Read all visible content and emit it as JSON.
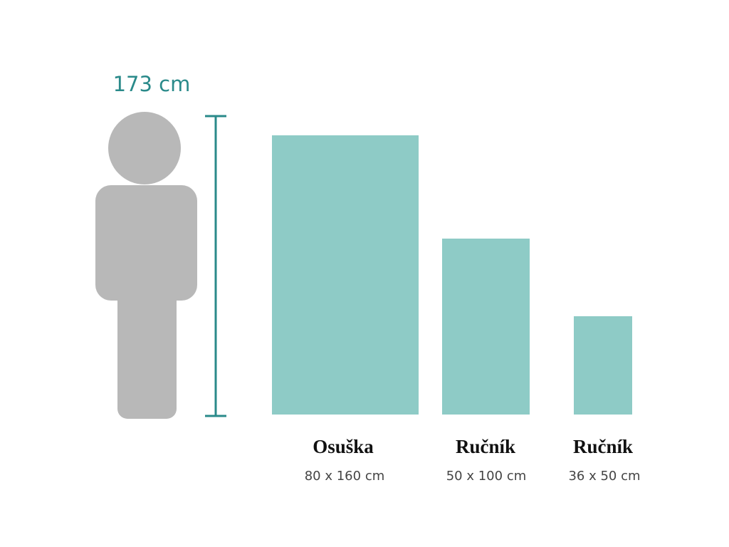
{
  "height_label": "173 cm",
  "items": [
    {
      "name": "Osuška",
      "size": "80 x 160 cm"
    },
    {
      "name": "Ručník",
      "size": "50 x 100 cm"
    },
    {
      "name": "Ručník",
      "size": "36 x 50 cm"
    }
  ]
}
